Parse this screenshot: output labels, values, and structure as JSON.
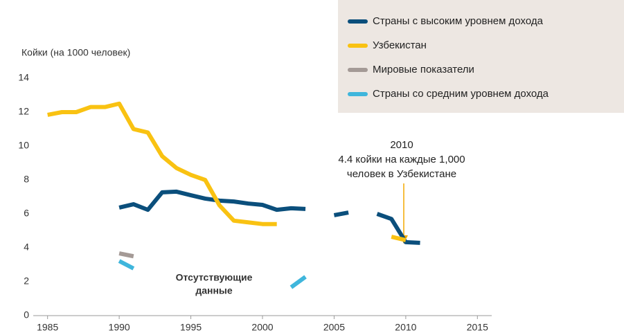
{
  "chart_data": {
    "type": "line",
    "y_axis_label": "Койки (на 1000 человек)",
    "x": [
      1985,
      1986,
      1987,
      1988,
      1989,
      1990,
      1991,
      1992,
      1993,
      1994,
      1995,
      1996,
      1997,
      1998,
      1999,
      2000,
      2001,
      2002,
      2003,
      2004,
      2005,
      2006,
      2007,
      2008,
      2009,
      2010,
      2011
    ],
    "series": [
      {
        "name": "Страны с высоким уровнем дохода",
        "color": "#0b4f7c",
        "values": [
          null,
          null,
          null,
          null,
          null,
          6.37,
          6.57,
          6.24,
          7.27,
          7.31,
          7.1,
          6.9,
          6.78,
          6.73,
          6.61,
          6.53,
          6.24,
          6.33,
          6.29,
          null,
          5.92,
          6.08,
          null,
          6.0,
          5.7,
          4.33,
          4.29
        ]
      },
      {
        "name": "Узбекистан",
        "color": "#f9c212",
        "values": [
          11.84,
          12.0,
          12.0,
          12.3,
          12.3,
          12.5,
          11.0,
          10.8,
          9.4,
          8.7,
          8.3,
          8.0,
          6.5,
          5.6,
          5.5,
          5.4,
          5.4,
          null,
          null,
          null,
          null,
          null,
          null,
          null,
          4.65,
          4.45,
          null
        ]
      },
      {
        "name": "Мировые показатели",
        "color": "#a49a96",
        "values": [
          null,
          null,
          null,
          null,
          null,
          3.67,
          3.5,
          null,
          null,
          null,
          null,
          null,
          null,
          null,
          null,
          null,
          null,
          null,
          null,
          null,
          null,
          null,
          null,
          null,
          null,
          null,
          null
        ]
      },
      {
        "name": "Страны со средним уровнем дохода",
        "color": "#3fb6dc",
        "values": [
          null,
          null,
          null,
          null,
          null,
          3.22,
          2.78,
          null,
          null,
          null,
          null,
          null,
          null,
          null,
          null,
          null,
          null,
          1.67,
          2.29,
          null,
          null,
          null,
          null,
          null,
          null,
          null,
          null
        ]
      }
    ],
    "xlim": [
      1984,
      2016
    ],
    "ylim": [
      0,
      14
    ],
    "xticks": [
      1985,
      1990,
      1995,
      2000,
      2005,
      2010,
      2015
    ],
    "yticks": [
      0,
      2,
      4,
      6,
      8,
      10,
      12,
      14
    ],
    "annotations": [
      "2010",
      "4.4 койки на каждые 1,000",
      "человек в Узбекистане",
      "Отсутствующие",
      "данные"
    ],
    "legend_position": "top-right"
  }
}
